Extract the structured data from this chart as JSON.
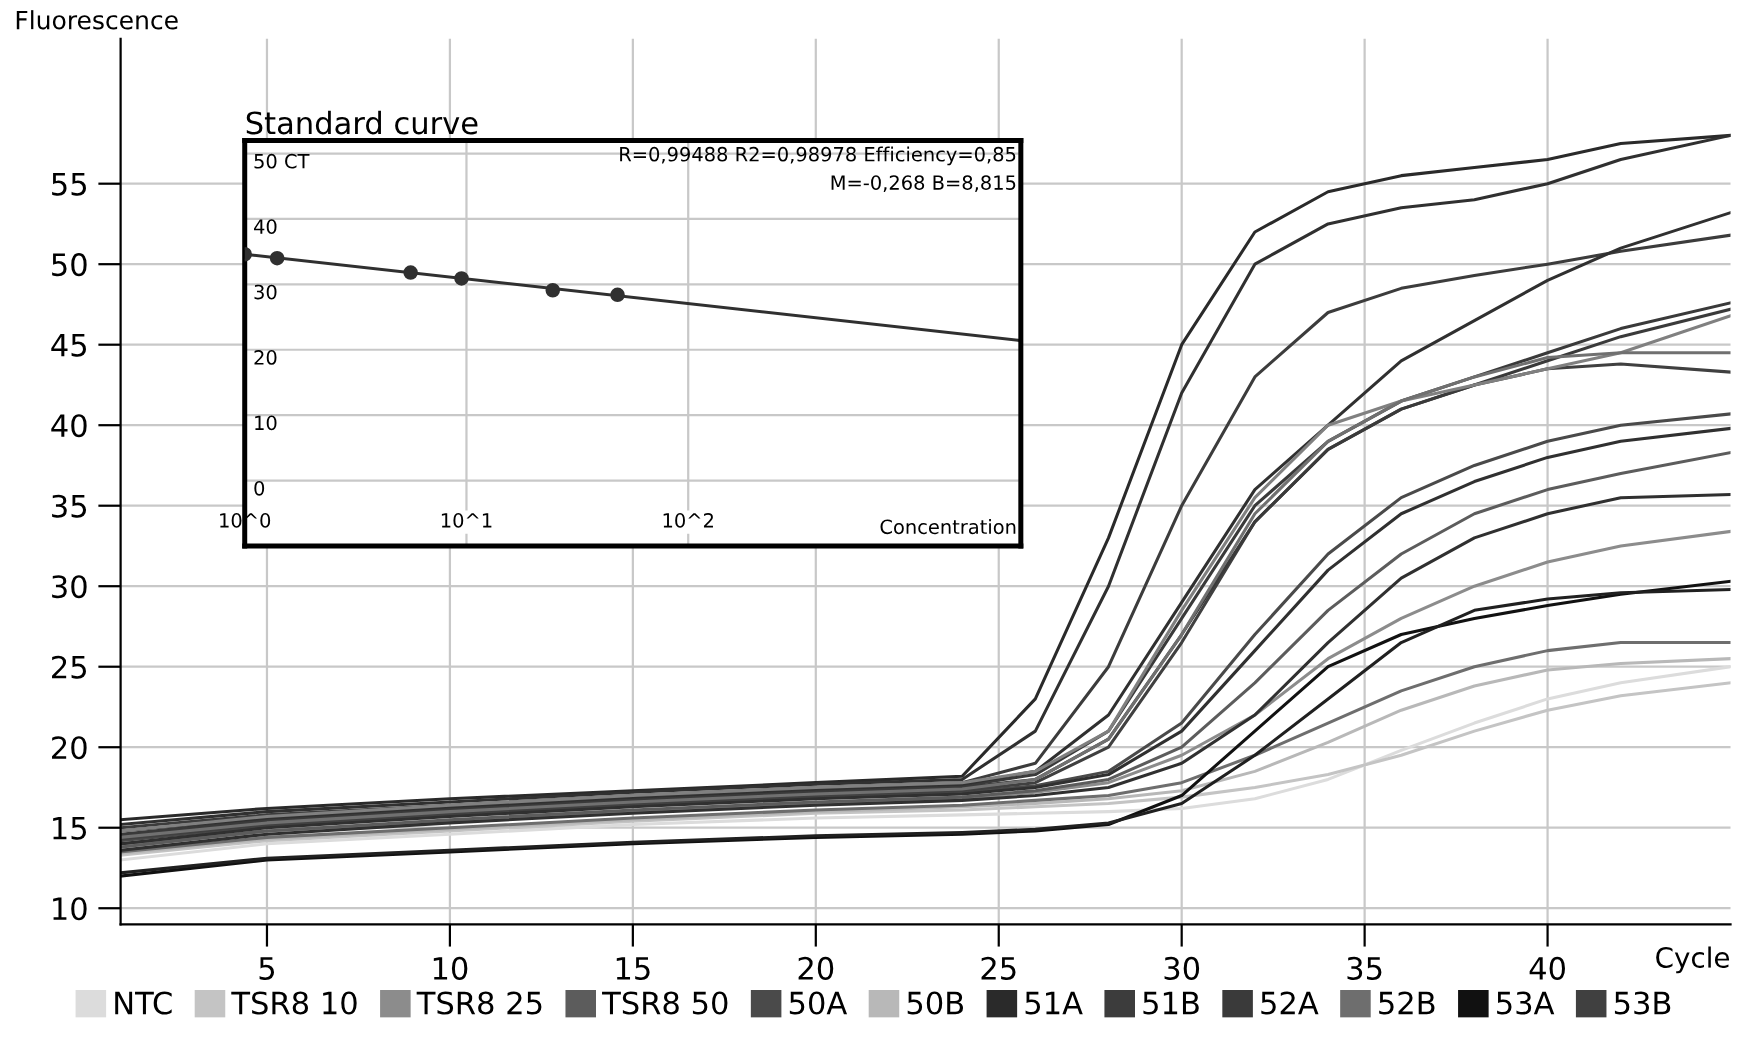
{
  "chart_data": [
    {
      "type": "line",
      "xlabel": "Cycle",
      "ylabel": "Fluorescence",
      "xlim": [
        1,
        45
      ],
      "ylim": [
        9,
        64
      ],
      "xticks": [
        5,
        10,
        15,
        20,
        25,
        30,
        35,
        40
      ],
      "yticks": [
        10,
        15,
        20,
        25,
        30,
        35,
        40,
        45,
        50,
        55
      ],
      "grid": true,
      "legend": "bottom",
      "marker": "none",
      "line_style": "solid",
      "x": [
        1,
        5,
        10,
        15,
        20,
        24,
        26,
        28,
        30,
        32,
        34,
        36,
        38,
        40,
        42,
        45
      ],
      "series": [
        {
          "name": "NTC",
          "color": "#dcdcdc",
          "values": [
            13,
            14,
            14.6,
            15.2,
            15.6,
            15.8,
            15.9,
            16,
            16.2,
            16.8,
            18,
            19.8,
            21.5,
            23,
            24,
            25
          ]
        },
        {
          "name": "TSR8 10",
          "color": "#c4c4c4",
          "values": [
            13.3,
            14.2,
            14.8,
            15.4,
            15.9,
            16.1,
            16.3,
            16.5,
            16.9,
            17.5,
            18.3,
            19.5,
            21,
            22.3,
            23.2,
            24
          ]
        },
        {
          "name": "TSR8 25",
          "color": "#8c8c8c",
          "values": [
            14,
            14.8,
            15.4,
            16,
            16.5,
            16.8,
            17.2,
            17.8,
            19.5,
            22,
            25.5,
            28,
            30,
            31.5,
            32.5,
            33.4
          ]
        },
        {
          "name": "TSR8 50",
          "color": "#5c5c5c",
          "values": [
            13.8,
            14.8,
            15.5,
            16.1,
            16.6,
            16.9,
            17.3,
            18,
            20,
            24,
            28.5,
            32,
            34.5,
            36,
            37,
            38.3
          ]
        },
        {
          "name": "50A",
          "color": "#4a4a4a",
          "values": [
            14.2,
            15.1,
            15.8,
            16.4,
            16.9,
            17.2,
            17.6,
            18.5,
            21.5,
            27,
            32,
            35.5,
            37.5,
            39,
            40,
            40.7
          ]
        },
        {
          "name": "50B",
          "color": "#b8b8b8",
          "values": [
            13.4,
            14.3,
            14.9,
            15.5,
            16,
            16.3,
            16.5,
            16.8,
            17.3,
            18.5,
            20.3,
            22.3,
            23.8,
            24.8,
            25.2,
            25.5
          ]
        },
        {
          "name": "51A",
          "color": "#2a2a2a",
          "values": [
            15.5,
            16.2,
            16.8,
            17.3,
            17.8,
            18.2,
            23,
            33,
            45,
            52,
            54.5,
            55.5,
            56,
            56.5,
            57.5,
            58
          ]
        },
        {
          "name": "51B",
          "color": "#3c3c3c",
          "values": [
            15,
            15.8,
            16.4,
            17,
            17.5,
            17.8,
            19,
            25,
            35,
            43,
            47,
            48.5,
            49.3,
            50,
            50.8,
            51.8
          ]
        },
        {
          "name": "52A",
          "color": "#3a3a3a",
          "values": [
            14.6,
            15.5,
            16.2,
            16.8,
            17.3,
            17.6,
            18.3,
            21,
            28,
            35,
            39,
            41.5,
            43,
            44.5,
            46,
            47.6
          ]
        },
        {
          "name": "52B",
          "color": "#6e6e6e",
          "values": [
            13.5,
            14.4,
            15,
            15.6,
            16.1,
            16.4,
            16.7,
            17,
            17.8,
            19.5,
            21.5,
            23.5,
            25,
            26,
            26.5,
            26.5
          ]
        },
        {
          "name": "53A",
          "color": "#111111",
          "values": [
            12,
            13,
            13.5,
            14,
            14.4,
            14.6,
            14.8,
            15.2,
            17,
            21,
            25,
            27,
            28,
            28.8,
            29.5,
            30.3
          ]
        },
        {
          "name": "53B",
          "color": "#404040",
          "values": [
            14.3,
            15.2,
            15.9,
            16.5,
            17,
            17.3,
            17.8,
            20,
            26.5,
            34,
            38.5,
            41,
            42.5,
            43.5,
            43.8,
            43.3
          ]
        },
        {
          "color": "#303030",
          "values": [
            15.2,
            16,
            16.6,
            17.2,
            17.7,
            18,
            21,
            30,
            42,
            50,
            52.5,
            53.5,
            54,
            55,
            56.5,
            58
          ]
        },
        {
          "color": "#303030",
          "values": [
            14.8,
            15.6,
            16.3,
            16.9,
            17.4,
            17.7,
            18.5,
            22,
            29,
            36,
            40,
            44,
            46.5,
            49,
            51,
            53.2
          ]
        },
        {
          "color": "#3a3a3a",
          "values": [
            14.5,
            15.4,
            16.1,
            16.7,
            17.2,
            17.5,
            18,
            20.5,
            27,
            34,
            38.5,
            41,
            42.5,
            44,
            45.5,
            47.2
          ]
        },
        {
          "color": "#808080",
          "values": [
            14.8,
            15.7,
            16.4,
            17,
            17.5,
            17.8,
            18.5,
            21,
            28.5,
            35.5,
            40,
            41.5,
            42.5,
            43.5,
            44.5,
            46.8
          ]
        },
        {
          "color": "#707070",
          "values": [
            14.4,
            15.3,
            16,
            16.6,
            17.1,
            17.4,
            18,
            20.5,
            27,
            34.5,
            39,
            41.5,
            43,
            44.2,
            44.5,
            44.5
          ]
        },
        {
          "color": "#303030",
          "values": [
            14,
            15,
            15.7,
            16.3,
            16.8,
            17.1,
            17.5,
            18.3,
            21,
            26,
            31,
            34.5,
            36.5,
            38,
            39,
            39.8
          ]
        },
        {
          "color": "#303030",
          "values": [
            13.6,
            14.6,
            15.3,
            15.9,
            16.4,
            16.7,
            17,
            17.5,
            19,
            22,
            26.5,
            30.5,
            33,
            34.5,
            35.5,
            35.7
          ]
        },
        {
          "color": "#202020",
          "values": [
            12.2,
            13.1,
            13.6,
            14.1,
            14.5,
            14.7,
            14.9,
            15.3,
            16.5,
            19.5,
            23,
            26.5,
            28.5,
            29.2,
            29.6,
            29.8
          ]
        }
      ]
    },
    {
      "type": "scatter",
      "title": "Standard curve",
      "xlabel": "Concentration",
      "log": "x",
      "xlim": [
        1,
        3162
      ],
      "ylim": [
        -10,
        52
      ],
      "xticks": [
        {
          "value": 1,
          "label": "10^0"
        },
        {
          "value": 10,
          "label": "10^1"
        },
        {
          "value": 100,
          "label": "10^2"
        }
      ],
      "yticks": [
        0,
        10,
        20,
        30,
        40,
        {
          "value": 50,
          "label": "50 CT"
        }
      ],
      "grid": true,
      "annotations": [
        "R=0,99488 R2=0,98978 Efficiency=0,85",
        "M=-0,268 B=8,815"
      ],
      "series": [
        {
          "type": "scatter",
          "color": "#303030",
          "marker": "circle",
          "x": [
            1,
            1.4,
            5.6,
            9.5,
            24.5,
            48
          ],
          "values": [
            34.6,
            34.0,
            31.8,
            30.9,
            29.1,
            28.4
          ]
        },
        {
          "type": "line",
          "color": "#303030",
          "x": [
            1,
            3162
          ],
          "values": [
            34.6,
            21.4
          ]
        }
      ]
    }
  ]
}
